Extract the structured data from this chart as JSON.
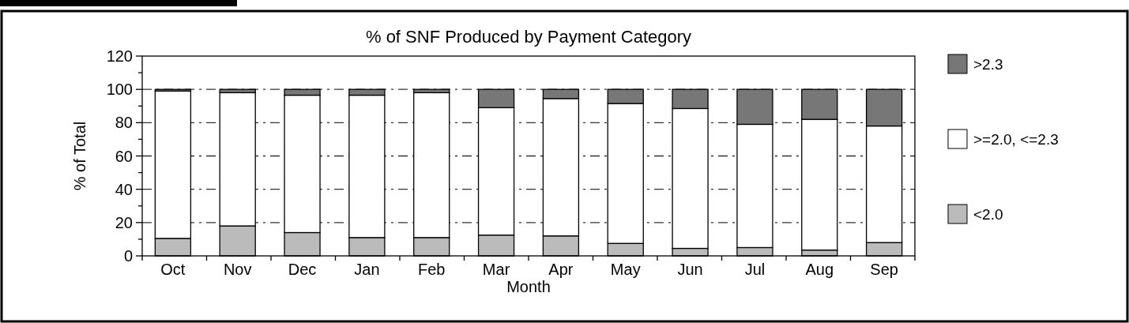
{
  "chart_data": {
    "type": "bar",
    "title": "% of SNF Produced by Payment Category",
    "xlabel": "Month",
    "ylabel": "% of Total",
    "categories": [
      "Oct",
      "Nov",
      "Dec",
      "Jan",
      "Feb",
      "Mar",
      "Apr",
      "May",
      "Jun",
      "Jul",
      "Aug",
      "Sep"
    ],
    "stacked": true,
    "series": [
      {
        "name": "<2.0",
        "color": "#bbbbbb",
        "values": [
          10.5,
          18,
          14,
          11,
          11,
          12.5,
          12,
          7.5,
          4.5,
          5,
          3.5,
          8
        ]
      },
      {
        "name": ">=2.0, <=2.3",
        "color": "#ffffff",
        "values": [
          88.5,
          80,
          82.5,
          85.5,
          87,
          76.5,
          82.5,
          84,
          84,
          74,
          78.5,
          70
        ]
      },
      {
        "name": ">2.3",
        "color": "#777777",
        "values": [
          1,
          2,
          3.5,
          3.5,
          2,
          11,
          5.5,
          8.5,
          11.5,
          21,
          18,
          22
        ]
      }
    ],
    "ylim": [
      0,
      120
    ],
    "yticks": [
      0,
      20,
      40,
      60,
      80,
      100,
      120
    ],
    "grid": "y",
    "legend": "right"
  }
}
